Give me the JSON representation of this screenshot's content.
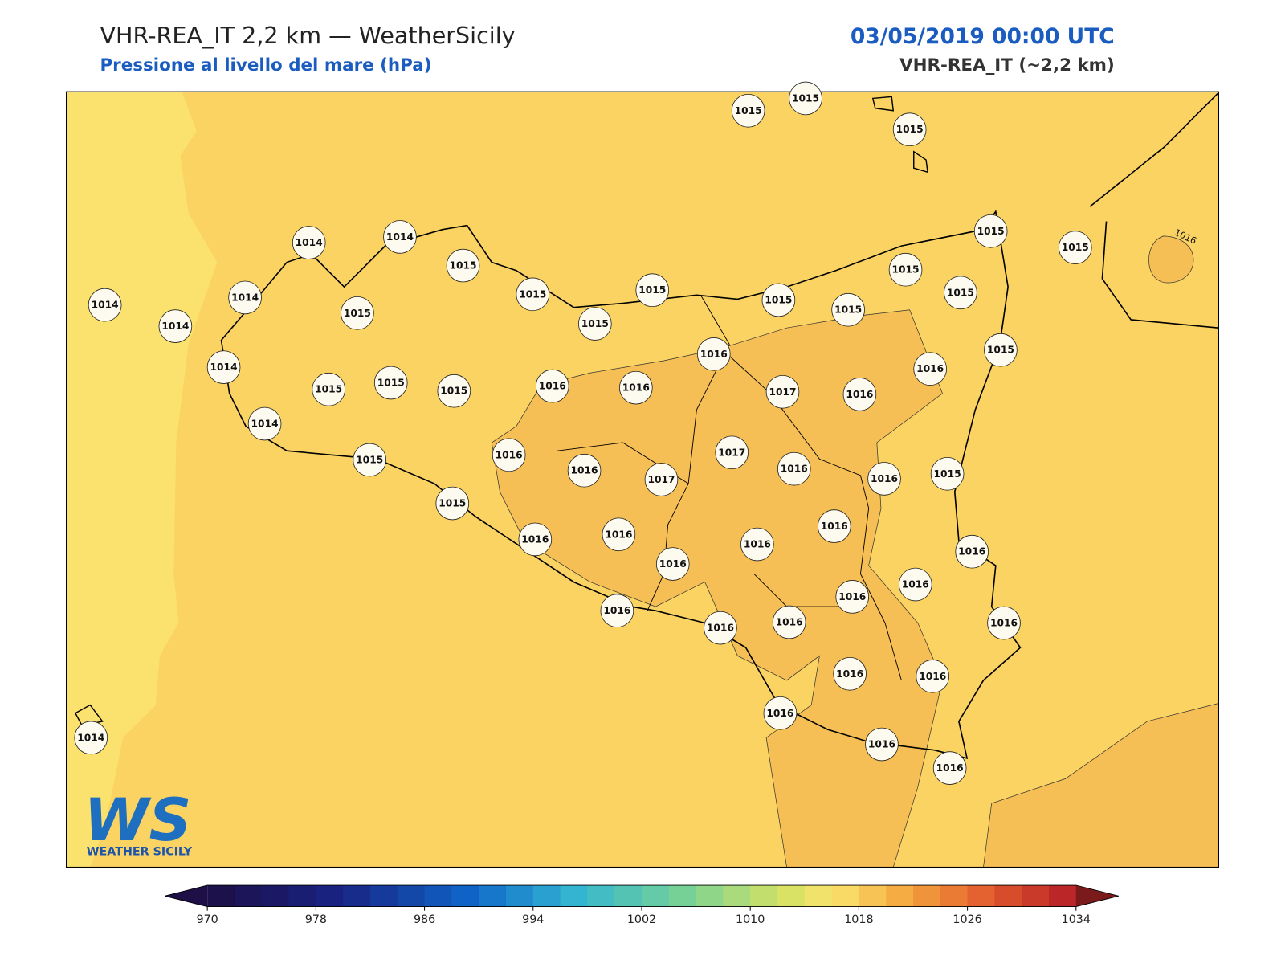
{
  "header": {
    "title": "VHR-REA_IT 2,2 km — WeatherSicily",
    "subtitle": "Pressione al livello del mare (hPa)",
    "datetime": "03/05/2019 00:00 UTC",
    "model": "VHR-REA_IT (~2,2 km)"
  },
  "map": {
    "stations": [
      1015,
      1015,
      1015,
      1014,
      1014,
      1015,
      1014,
      1014,
      1014,
      1015,
      1015,
      1015,
      1015,
      1015,
      1015,
      1015,
      1015,
      1015,
      1015,
      1015,
      1016,
      1016,
      1014,
      1015,
      1015,
      1015,
      1016,
      1016,
      1017,
      1016,
      1014,
      1016,
      1016,
      1017,
      1017,
      1016,
      1016,
      1015,
      1015,
      1015,
      1016,
      1016,
      1016,
      1016,
      1016,
      1016,
      1016,
      1016,
      1016,
      1016,
      1016,
      1016,
      1016,
      1016,
      1016,
      1016,
      1016,
      1014
    ],
    "contour_labels": [
      1016
    ]
  },
  "colorbar": {
    "ticks": [
      970,
      978,
      986,
      994,
      1002,
      1010,
      1018,
      1026,
      1034
    ]
  },
  "logo": {
    "mark": "WS",
    "text": "WEATHER SICILY"
  }
}
